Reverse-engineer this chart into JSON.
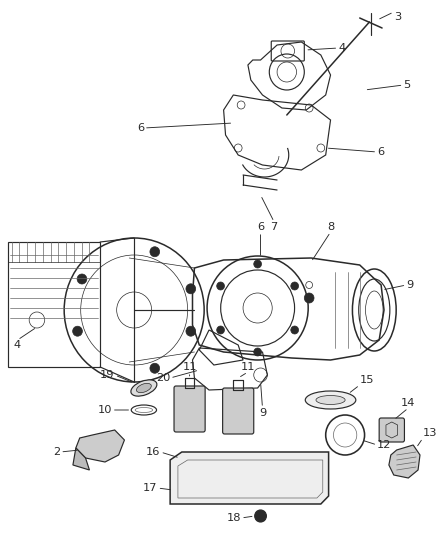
{
  "background": "#ffffff",
  "fig_w": 4.38,
  "fig_h": 5.33,
  "dpi": 100,
  "gray": "#2a2a2a",
  "lgray": "#666666",
  "vlgray": "#aaaaaa",
  "lw_main": 0.85,
  "lw_thin": 0.5,
  "lw_thick": 1.1,
  "fs": 8.2
}
